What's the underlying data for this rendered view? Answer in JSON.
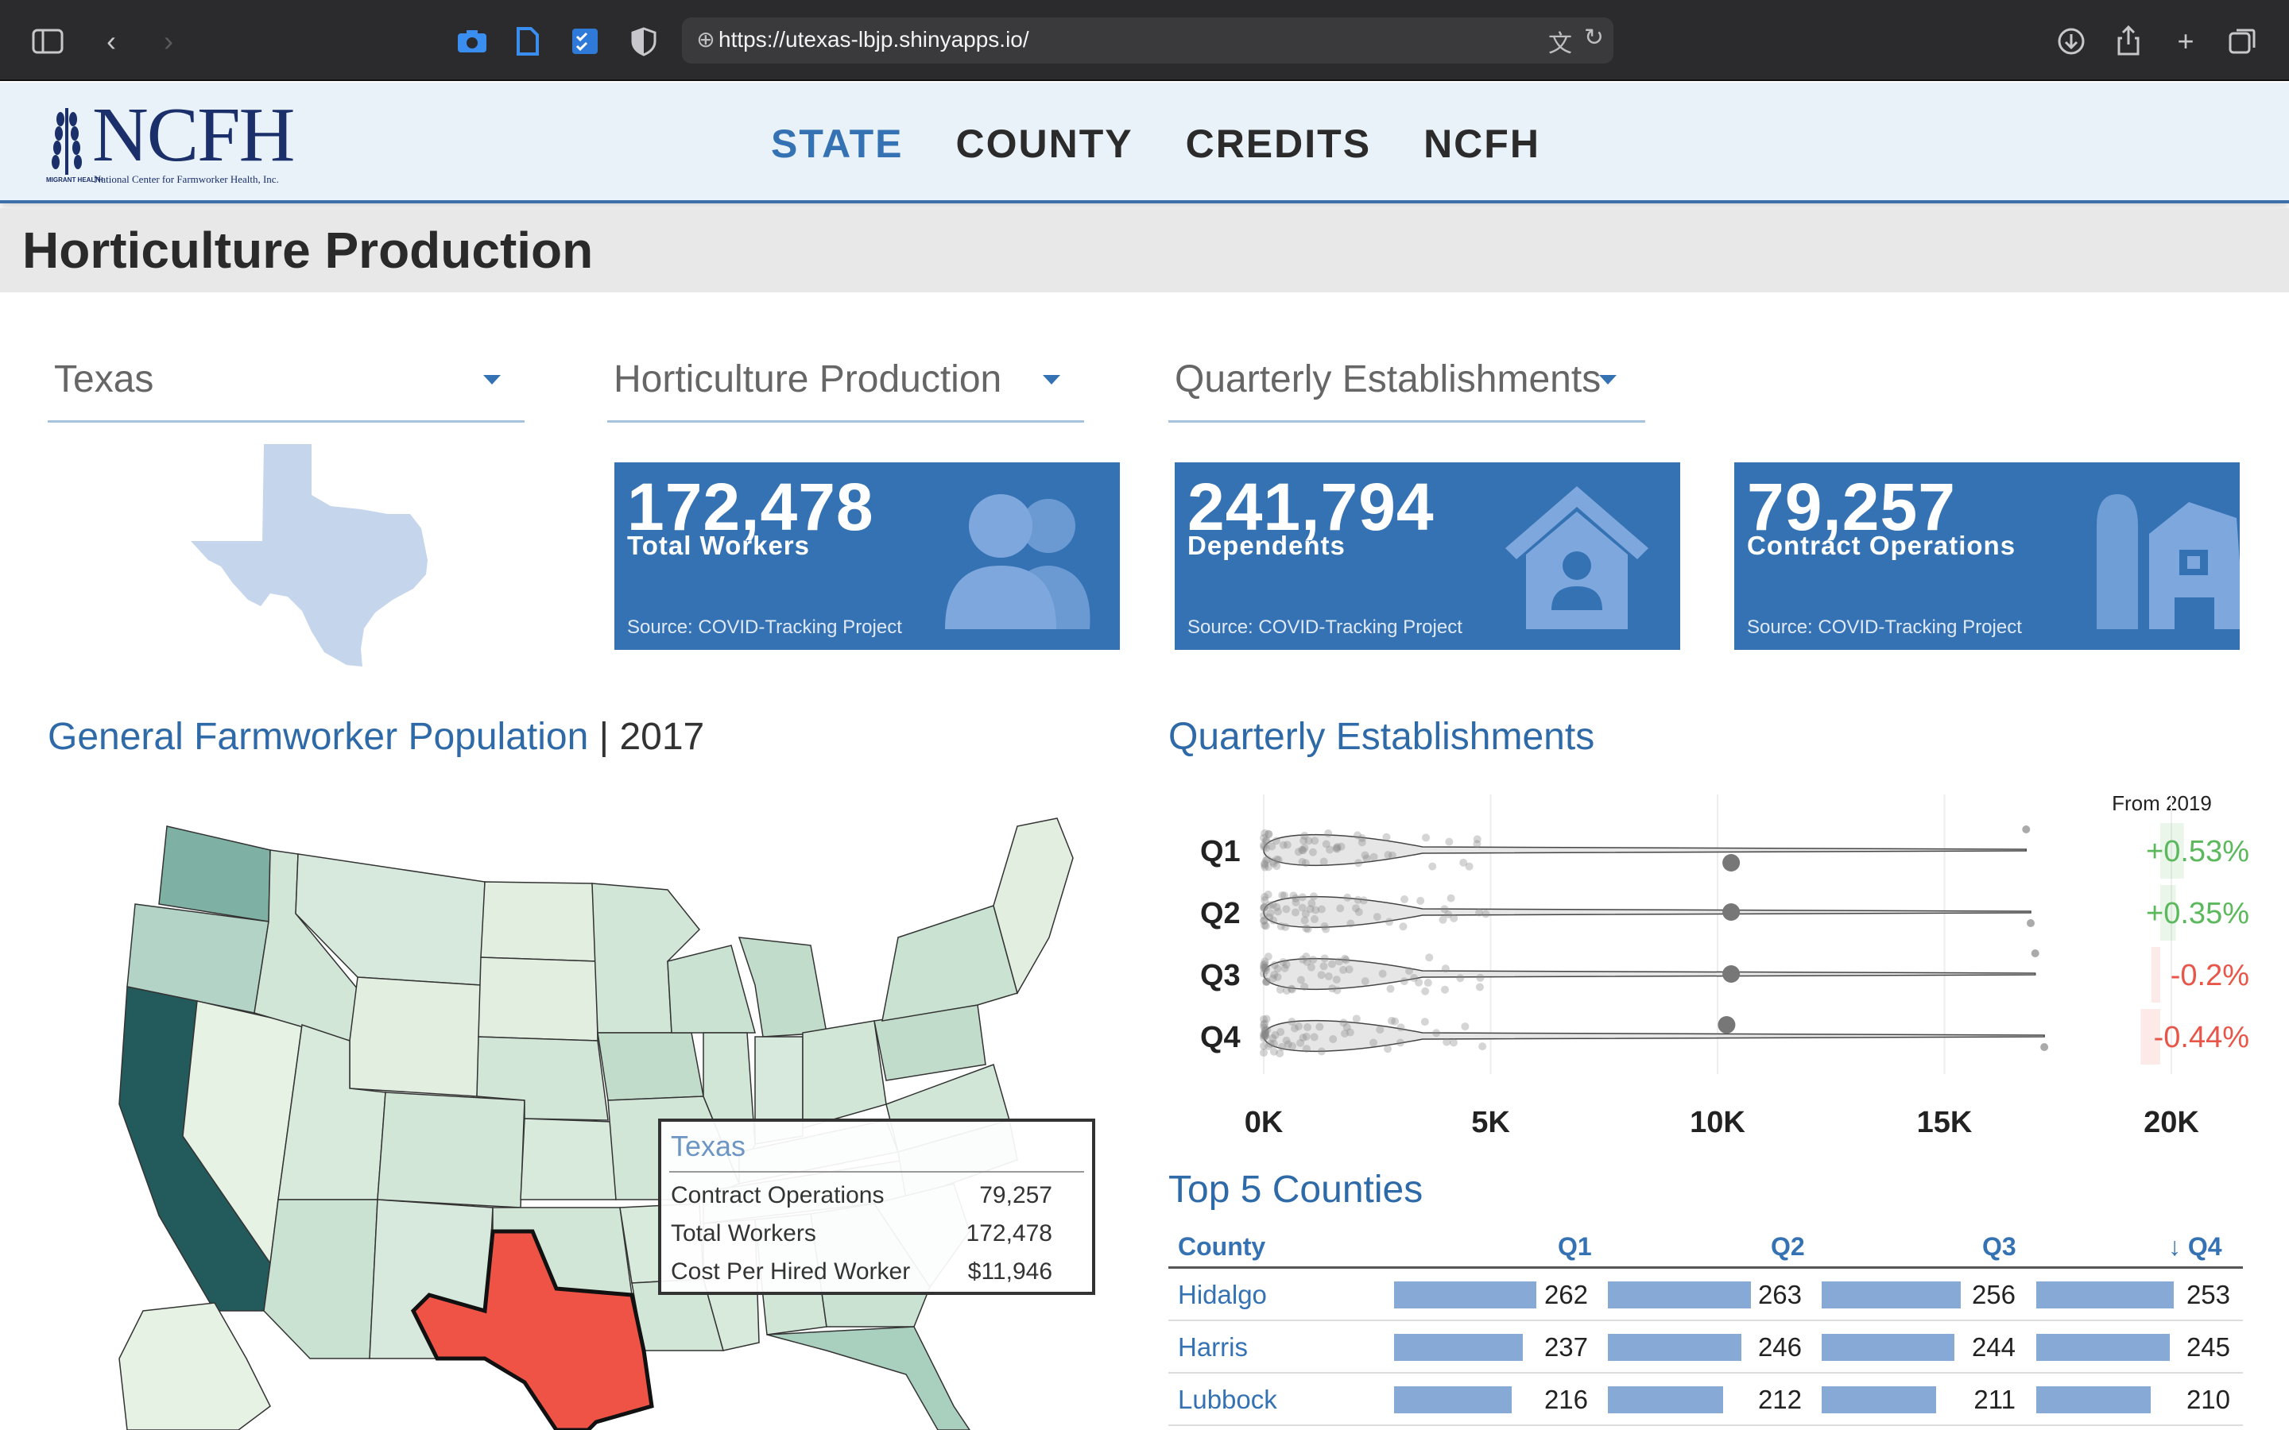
{
  "browser": {
    "url": "https://utexas-lbjp.shinyapps.io/"
  },
  "header": {
    "brand": "NCFH",
    "tagline": "National Center for Farmworker Health, Inc.",
    "badge": "MIGRANT HEALTH",
    "nav": [
      "STATE",
      "COUNTY",
      "CREDITS",
      "NCFH"
    ],
    "active_nav": "STATE"
  },
  "page": {
    "title": "Horticulture Production"
  },
  "selects": {
    "state": "Texas",
    "industry": "Horticulture Production",
    "metric": "Quarterly Establishments"
  },
  "value_boxes": [
    {
      "value": "172,478",
      "label": "Total Workers",
      "source": "Source: COVID-Tracking Project",
      "icon": "users-icon"
    },
    {
      "value": "241,794",
      "label": "Dependents",
      "source": "Source: COVID-Tracking Project",
      "icon": "house-user-icon"
    },
    {
      "value": "79,257",
      "label": "Contract Operations",
      "source": "Source: COVID-Tracking Project",
      "icon": "barn-icon"
    }
  ],
  "map_section": {
    "title": "General Farmworker Population",
    "year": "| 2017",
    "tooltip": {
      "title": "Texas",
      "rows": [
        {
          "label": "Contract Operations",
          "value": "79,257"
        },
        {
          "label": "Total Workers",
          "value": "172,478"
        },
        {
          "label": "Cost Per Hired Worker",
          "value": "$11,946"
        }
      ]
    },
    "highlight_color": "#ee5346"
  },
  "quarterly_section": {
    "title": "Quarterly Establishments",
    "change_header": "From 2019"
  },
  "chart_data": {
    "type": "scatter",
    "title": "Quarterly Establishments",
    "categories": [
      "Q1",
      "Q2",
      "Q3",
      "Q4"
    ],
    "xlim": [
      0,
      20000
    ],
    "xticks": [
      "0K",
      "5K",
      "10K",
      "15K",
      "20K"
    ],
    "max_points": [
      10300,
      10300,
      10300,
      10200
    ],
    "max_range": [
      16800,
      16900,
      17000,
      17200
    ],
    "change_from_2019": [
      "+0.53%",
      "+0.35%",
      "-0.2%",
      "-0.44%"
    ],
    "change_values": [
      0.53,
      0.35,
      -0.2,
      -0.44
    ],
    "positive_color": "#5cb85c",
    "negative_color": "#e8564a"
  },
  "top_counties": {
    "title": "Top 5 Counties",
    "headers": [
      "County",
      "Q1",
      "Q2",
      "Q3",
      "↓ Q4"
    ],
    "max": 263,
    "rows": [
      {
        "county": "Hidalgo",
        "q": [
          262,
          263,
          256,
          253
        ]
      },
      {
        "county": "Harris",
        "q": [
          237,
          246,
          244,
          245
        ]
      },
      {
        "county": "Lubbock",
        "q": [
          216,
          212,
          211,
          210
        ]
      }
    ]
  }
}
